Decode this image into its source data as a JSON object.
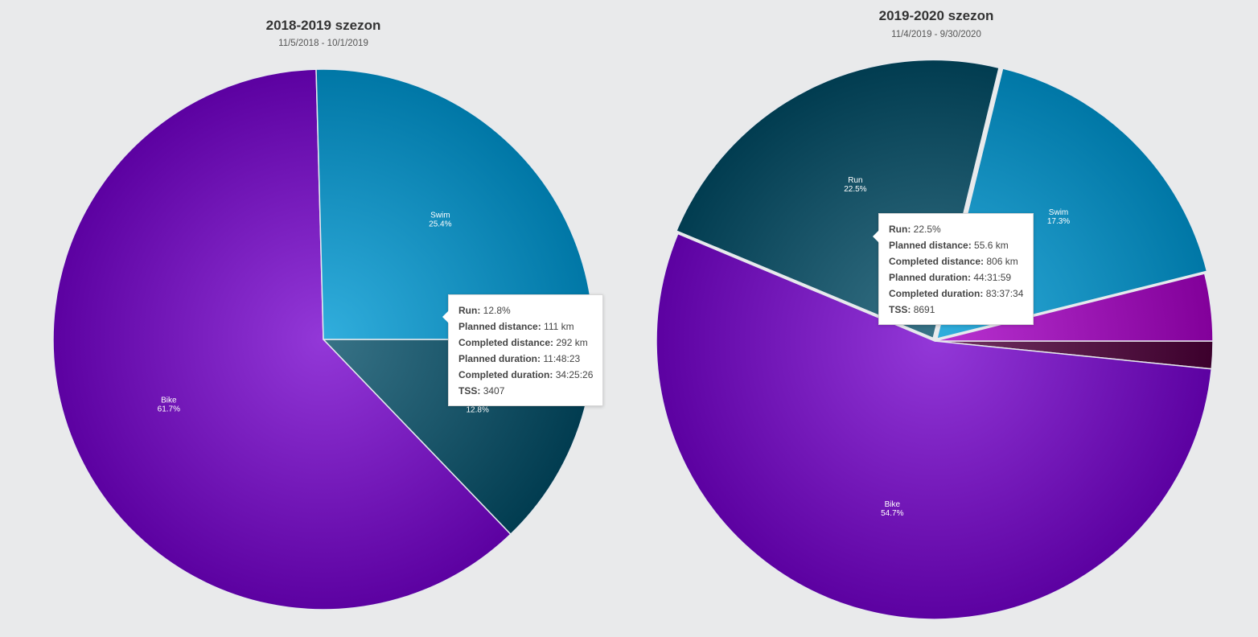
{
  "chart_data": [
    {
      "type": "pie",
      "title": "2018-2019 szezon",
      "subtitle": "11/5/2018 - 10/1/2019",
      "slices": [
        {
          "name": "Run",
          "percent": 12.8,
          "label": "12.8%",
          "color": "#1f5a6e"
        },
        {
          "name": "Bike",
          "percent": 61.7,
          "label": "61.7%",
          "color": "#7a1fbf"
        },
        {
          "name": "Swim",
          "percent": 25.4,
          "label": "25.4%",
          "color": "#1895c4"
        }
      ],
      "tooltip": {
        "series": "Run",
        "value": "12.8%",
        "rows": [
          {
            "key": "Planned distance",
            "value": "111 km"
          },
          {
            "key": "Completed distance",
            "value": "292 km"
          },
          {
            "key": "Planned duration",
            "value": "11:48:23"
          },
          {
            "key": "Completed duration",
            "value": "34:25:26"
          },
          {
            "key": "TSS",
            "value": "3407"
          }
        ]
      }
    },
    {
      "type": "pie",
      "title": "2019-2020 szezon",
      "subtitle": "11/4/2019 - 9/30/2020",
      "slices": [
        {
          "name": "",
          "percent": 1.6,
          "label": "",
          "color": "#5a1a4a"
        },
        {
          "name": "Bike",
          "percent": 54.7,
          "label": "54.7%",
          "color": "#7a1fbf"
        },
        {
          "name": "Run",
          "percent": 22.5,
          "label": "22.5%",
          "color": "#1f5a6e"
        },
        {
          "name": "Swim",
          "percent": 17.3,
          "label": "17.3%",
          "color": "#1895c4"
        },
        {
          "name": "",
          "percent": 3.9,
          "label": "",
          "color": "#a01ab8"
        }
      ],
      "tooltip": {
        "series": "Run",
        "value": "22.5%",
        "rows": [
          {
            "key": "Planned distance",
            "value": "55.6 km"
          },
          {
            "key": "Completed distance",
            "value": "806 km"
          },
          {
            "key": "Planned duration",
            "value": "44:31:59"
          },
          {
            "key": "Completed duration",
            "value": "83:37:34"
          },
          {
            "key": "TSS",
            "value": "8691"
          }
        ]
      }
    }
  ]
}
